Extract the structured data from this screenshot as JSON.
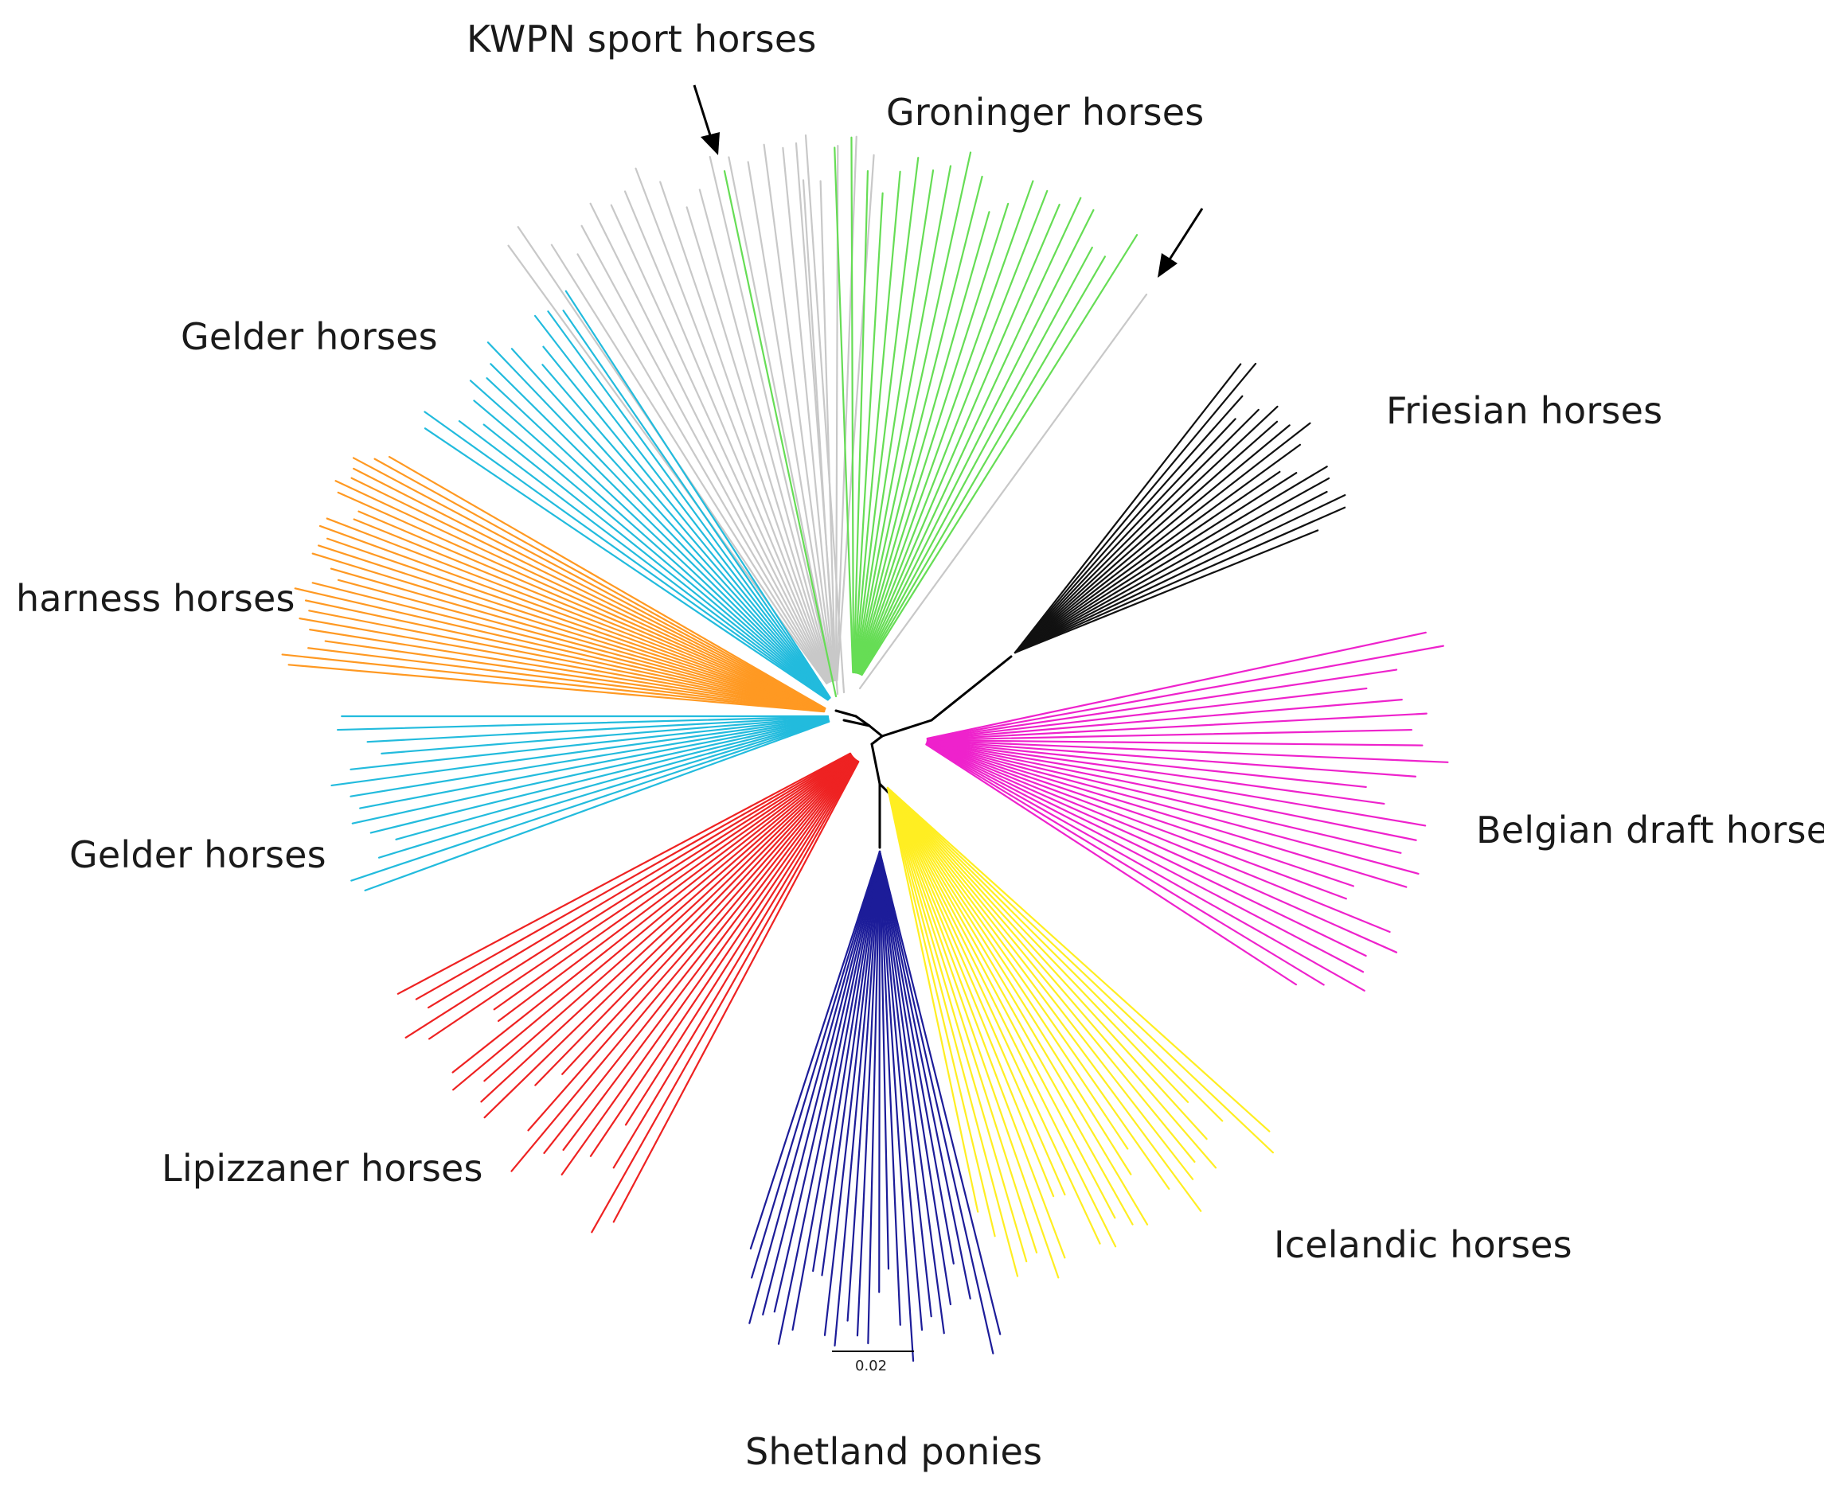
{
  "labels": {
    "kwpn": "KWPN sport horses",
    "groninger": "Groninger horses",
    "friesian": "Friesian horses",
    "belgian": "Belgian draft horses",
    "icelandic": "Icelandic horses",
    "shetland": "Shetland ponies",
    "lipizzaner": "Lipizzaner horses",
    "gelder_lower": "Gelder horses",
    "harness": "harness horses",
    "gelder_upper": "Gelder horses"
  },
  "scale_bar": {
    "label": "0.02"
  },
  "colors": {
    "kwpn": "#c8c8c8",
    "groninger": "#66dd55",
    "friesian": "#111111",
    "belgian": "#ee22cc",
    "icelandic": "#ffee22",
    "shetland": "#1c1c99",
    "lipizzaner": "#ee2222",
    "gelder": "#22bbdd",
    "harness": "#ff9922",
    "internal": "#000000",
    "arrow": "#000000"
  }
}
